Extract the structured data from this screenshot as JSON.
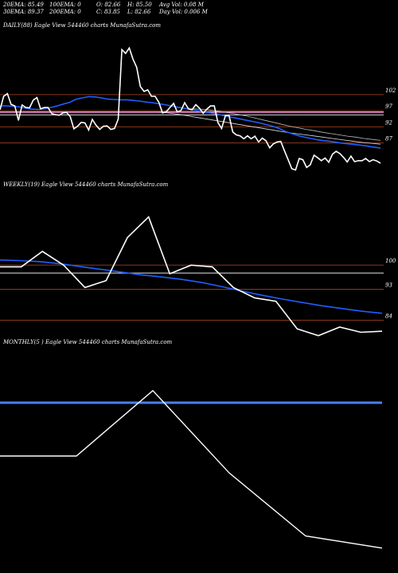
{
  "header": {
    "ema20": "20EMA: 85.49",
    "ema100": "100EMA: 0",
    "open": "O: 82.66",
    "high": "H: 85.50",
    "avg_vol": "Avg Vol: 0.08  M",
    "ema30": "30EMA: 89.37",
    "ema200": "200EMA: 0",
    "close": "C: 83.85",
    "low": "L: 82.66",
    "day_vol": "Day Vol: 0.006  M"
  },
  "colors": {
    "background": "#000000",
    "price": "#ffffff",
    "ema": "#1f5fff",
    "level": "#8b3a1a",
    "pink": "#ff8fd8",
    "gray": "#bbbbbb"
  },
  "chart_data": [
    {
      "type": "line",
      "title": "DAILY(88) Eagle  View  544460  charts MunafaSutra.com",
      "y_ticks": [
        "102",
        "97",
        "92",
        "87"
      ],
      "y_tick_values": [
        102,
        97,
        92,
        87
      ],
      "ylim": [
        79,
        122
      ],
      "level_lines": [
        102,
        97,
        92,
        87
      ],
      "pink_line": 96.6,
      "gray_line": 95.7,
      "price": [
        97.3,
        101.5,
        102.3,
        99,
        98.5,
        94,
        98.8,
        98,
        97.9,
        100.3,
        101.1,
        97.6,
        98,
        98,
        96.1,
        95.8,
        95.6,
        96.3,
        96.5,
        95.2,
        91.4,
        92.2,
        93.4,
        93.2,
        91,
        94.3,
        92.5,
        91.2,
        92.2,
        92.3,
        91.2,
        91.5,
        94.4,
        116,
        114.8,
        116.5,
        113,
        110.5,
        104.5,
        103,
        103.5,
        101.5,
        101.5,
        99.6,
        96.3,
        96.7,
        98,
        99.3,
        96.6,
        97.1,
        99.5,
        97.6,
        97.3,
        98.9,
        97.8,
        96.2,
        97.5,
        98.5,
        98.5,
        93.3,
        91.5,
        95.4,
        95.6,
        90.4,
        89.5,
        89.2,
        88.3,
        89.2,
        88.3,
        89.1,
        87.3,
        88.5,
        87.7,
        85.5,
        86.7,
        87.3,
        87.5,
        84.6,
        81.8,
        79,
        78.6,
        82.2,
        81.8,
        79.4,
        80.2,
        83.2,
        82.4,
        81.5,
        82.3,
        81,
        83.5,
        84.4,
        83.7,
        82.5,
        81.1,
        82.9,
        81.2,
        81.5,
        81.5,
        82.2,
        81.2,
        81.8,
        81.4,
        80.7
      ],
      "ema": [
        98.5,
        98.5,
        98.4,
        98.2,
        97.8,
        97.5,
        97.4,
        97.6,
        98.0,
        98.5,
        99.1,
        99.6,
        100.6,
        101.0,
        101.4,
        101.3,
        101.0,
        100.6,
        100.5,
        100.4,
        100.4,
        100.2,
        100.0,
        99.7,
        99.5,
        99.2,
        98.9,
        98.5,
        98.1,
        97.8,
        97.4,
        97.1,
        96.7,
        96.4,
        96.0,
        95.6,
        95.2,
        94.8,
        94.4,
        94.0,
        93.6,
        93.2,
        92.7,
        92.2,
        91.5,
        90.6,
        89.9,
        89.3,
        88.8,
        88.4,
        88.0,
        87.7,
        87.5,
        87.2,
        86.9,
        86.7,
        86.5,
        86.3,
        86.0,
        85.7,
        85.4
      ],
      "sma_gray": [
        97.6,
        97.5,
        97.3,
        97.0,
        96.6,
        96.2,
        95.7,
        95.2,
        94.6,
        94.0,
        93.4,
        92.8,
        92.2,
        91.7,
        91.2,
        90.8,
        90.3,
        89.9,
        89.5,
        89.1,
        88.8,
        88.4,
        88.1,
        87.8
      ],
      "sma_white": [
        96.6,
        96.3,
        95.9,
        95.4,
        94.9,
        94.4,
        93.9,
        93.4,
        92.9,
        92.4,
        91.9,
        91.4,
        90.9,
        90.4,
        90.0,
        89.6,
        89.2,
        88.8,
        88.4,
        88.0,
        87.6,
        87.2,
        86.9,
        86.6
      ]
    },
    {
      "type": "line",
      "title": "WEEKLY(19) Eagle  View  544460  charts MunafaSutra.com",
      "y_ticks": [
        "100",
        "93",
        "84"
      ],
      "y_tick_values": [
        100,
        93,
        84
      ],
      "ylim": [
        79,
        122
      ],
      "level_lines": [
        100,
        93,
        84
      ],
      "gray_line": 97.7,
      "price": [
        99.5,
        99.5,
        104,
        100,
        93.5,
        95.5,
        108,
        114,
        97.5,
        100,
        99.5,
        93.5,
        90.5,
        89.5,
        81.5,
        79.5,
        82,
        80.5,
        80.8
      ],
      "ema": [
        101.5,
        101.3,
        101.0,
        100.4,
        99.6,
        98.8,
        98.0,
        97.2,
        96.6,
        95.9,
        95.0,
        93.8,
        92.5,
        91.3,
        90.2,
        89.2,
        88.2,
        87.4,
        86.6,
        86.0
      ]
    },
    {
      "type": "line",
      "title": "MONTHLY(5          ) Eagle  View  544460  charts MunafaSutra.com",
      "ylim": [
        35,
        125
      ],
      "price": [
        80,
        80,
        107,
        73,
        47,
        42
      ],
      "ema": [
        102,
        102,
        102,
        102,
        102,
        102
      ]
    }
  ]
}
